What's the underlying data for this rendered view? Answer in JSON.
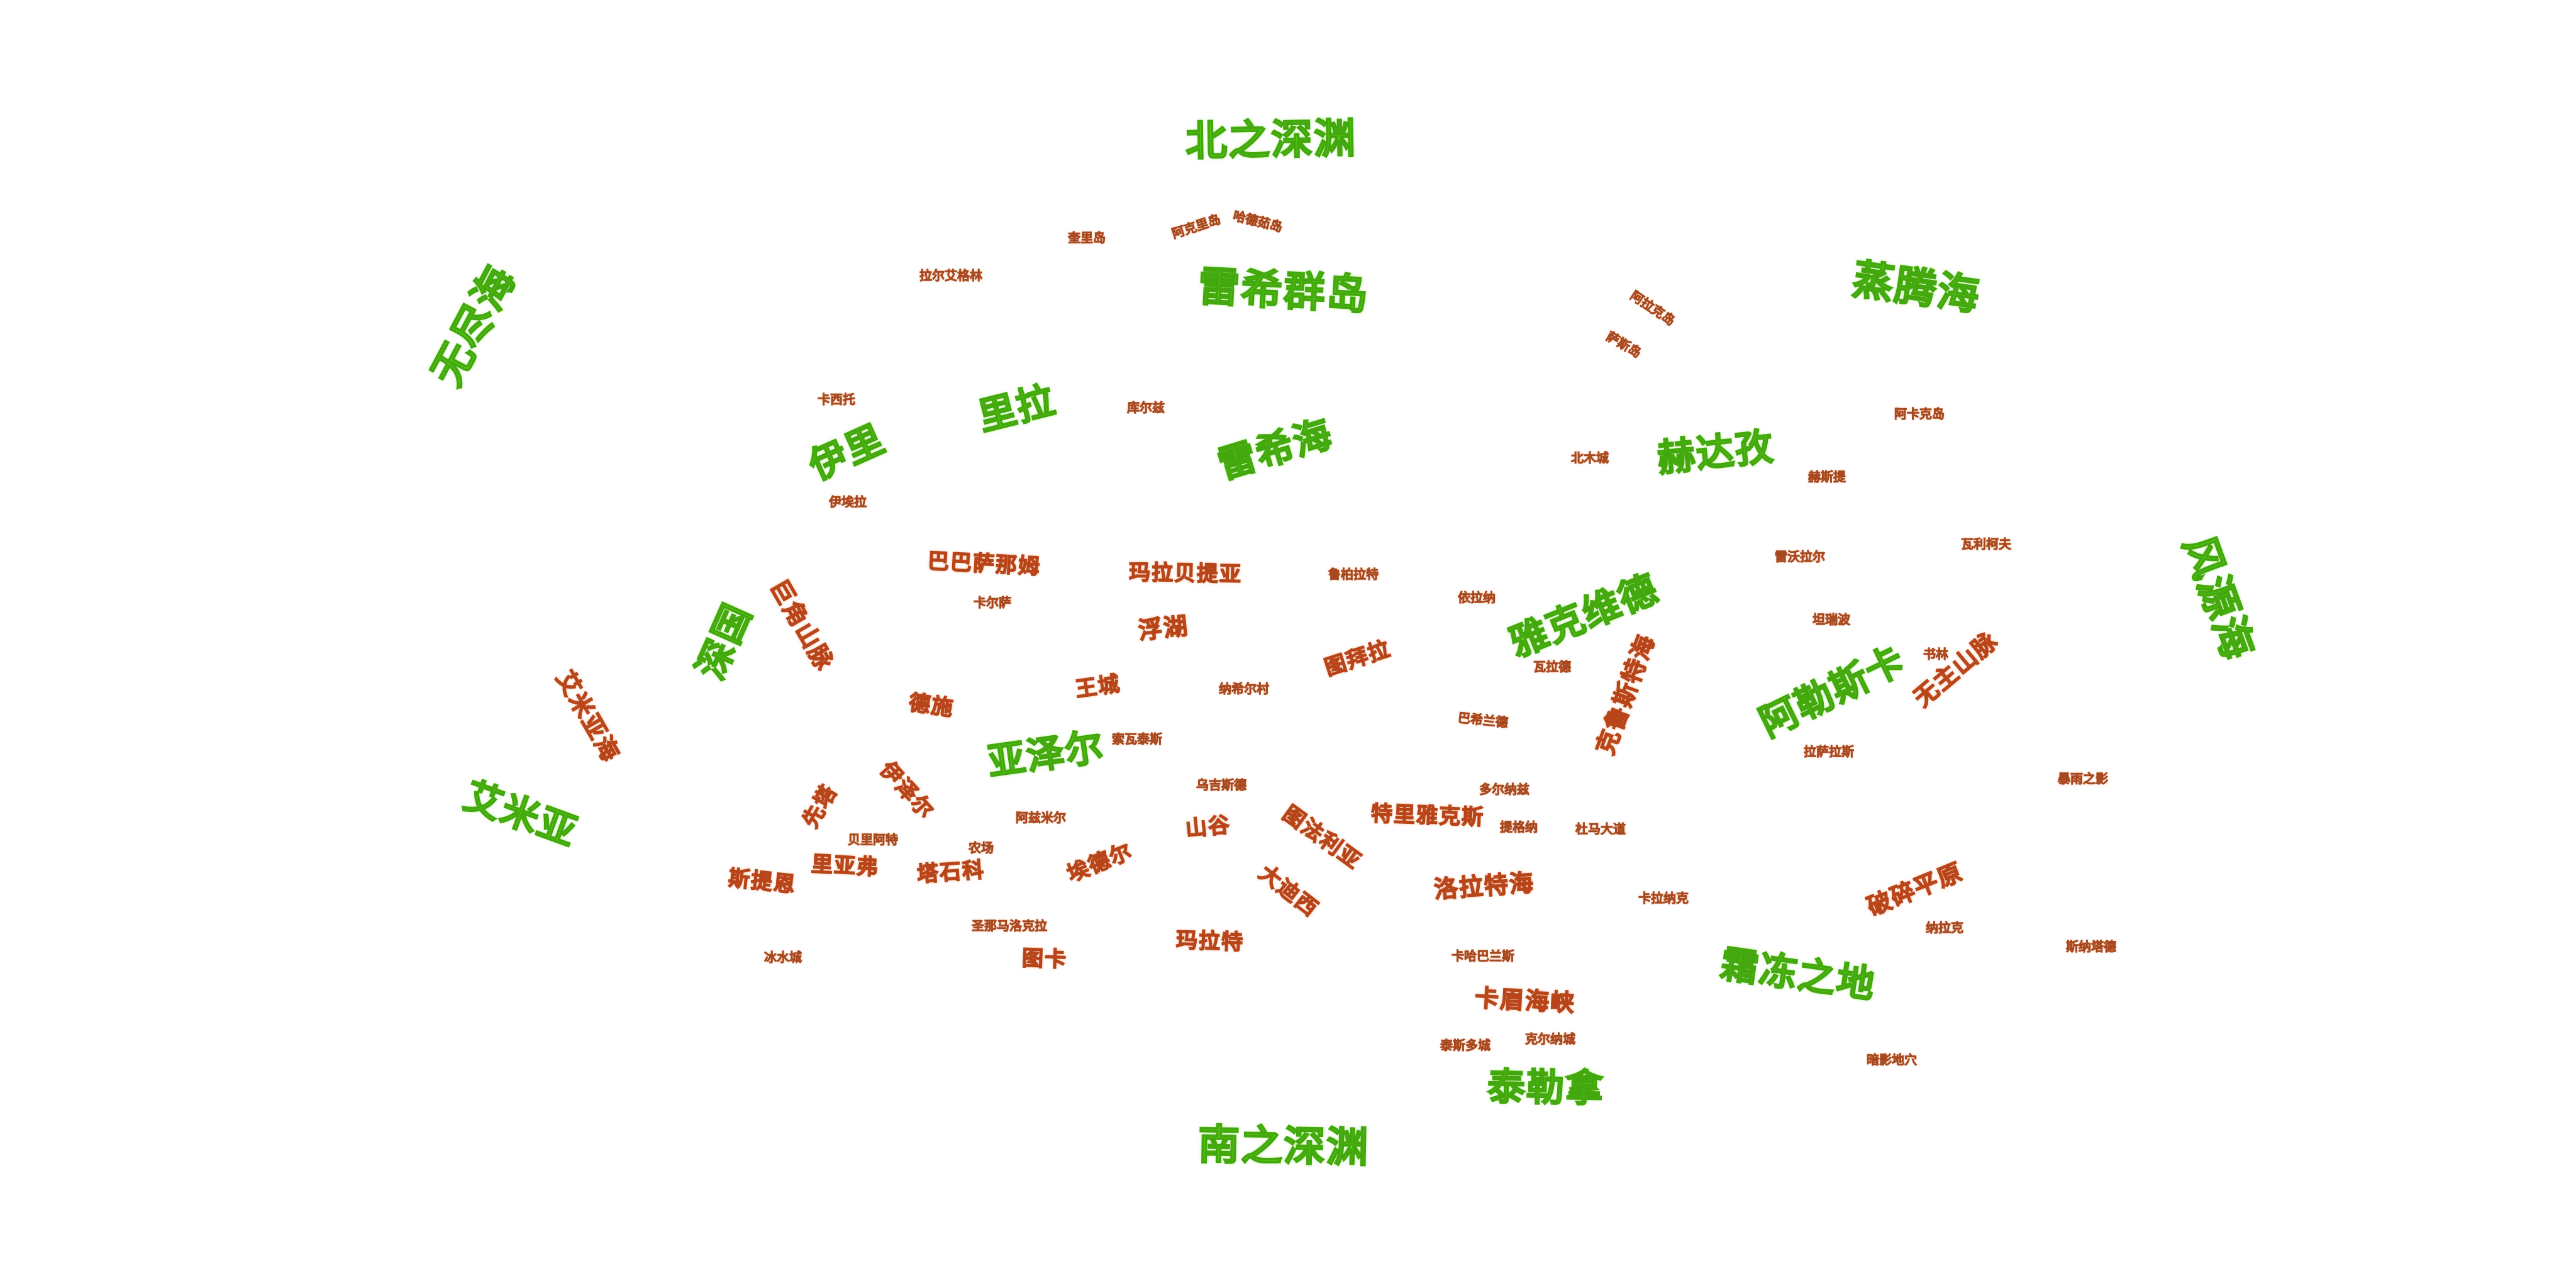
{
  "map": {
    "labels": {
      "north_abyss": "北之深渊",
      "south_abyss": "南之深渊",
      "rex_islands": "雷希群岛",
      "rex_sea": "雷希海",
      "vast_sea": "无尽海",
      "steam_sea": "蒸腾海",
      "wind_source_sea": "风源海",
      "ili": "伊里",
      "lila": "里拉",
      "hedaz": "赫达孜",
      "yakovid": "雅克维德",
      "alaska": "阿勒斯卡",
      "deep_kingdom": "深国",
      "azel": "亚泽尔",
      "emia": "艾米亚",
      "frostland": "霜冻之地",
      "taylorna": "泰勒拿",
      "giant_cape": "巨角山脉",
      "emiyasi_sea": "艾米亚海",
      "babazanom": "巴巴萨那姆",
      "marabetia": "玛拉贝提亚",
      "lake": "浮湖",
      "tibilla": "图拜拉",
      "wangcheng": "王城",
      "deshi": "德施",
      "kokmiddle": "克鲁斯特海",
      "no_main_mountain": "无主山脉",
      "shitan": "先塔",
      "yisel": "伊泽尔",
      "lilafu": "里亚弗",
      "sitien": "斯提恩",
      "tashike": "塔石科",
      "aidewel": "埃德尔",
      "shangu": "山谷",
      "tufaliya": "图法利亚",
      "tilijakes": "特里雅克斯",
      "dadise": "大迪西",
      "lolate_sea": "洛拉特海",
      "broken_plain": "破碎平原",
      "mara": "玛拉特",
      "tuka": "图卡",
      "kameixia": "卡眉海峡",
      "t_tuoer_aixin": "拉尔艾格林",
      "t_qiqidao": "奎里岛",
      "t_akeliedao": "阿克里岛",
      "t_shouyudao": "哈德茹岛",
      "t_kaxituo": "卡西托",
      "t_kuerlie": "库尔兹",
      "t_yiqiuqiu": "伊埃拉",
      "t_aliqiu": "阿拉克岛",
      "t_shaishidao": "萨斯岛",
      "t_akakedao": "阿卡克岛",
      "t_beimucheng": "北木城",
      "t_xusiti": "赫斯提",
      "t_guwolaer": "雷沃拉尔",
      "t_walikefu": "瓦利柯夫",
      "t_tanabo": "坦瑞波",
      "t_shushu": "书林",
      "t_kalekayi": "卡尔萨",
      "t_luobaiyi": "鲁柏拉特",
      "t_yilana": "依拉纳",
      "t_walade": "瓦拉德",
      "t_nahuan": "纳希尔村",
      "t_bahuan": "巴希兰德",
      "t_kuoneisi": "索瓦泰斯",
      "t_dsa": "拉萨拉斯",
      "t_shadow": "暴雨之影",
      "t_wuyudiqu": "乌吉斯德",
      "t_aerwanlinaxi": "多尔纳兹",
      "t_shanshina": "提格纳",
      "t_tuoma": "杜马大道",
      "t_alaziel": "阿兹米尔",
      "t_beiali": "贝里阿特",
      "t_nongchang": "农场",
      "t_kalanan": "卡拉纳克",
      "t_najiao": "纳拉克",
      "t_xinnaluobi": "斯纳塔德",
      "t_shengmo": "圣那马洛克拉",
      "t_bingshuicheng": "冰水城",
      "t_kaxiulanisi": "卡哈巴兰斯",
      "t_taisiduocheng": "泰斯多城",
      "t_kaiercheng": "克尔纳城",
      "t_shadowcave": "暗影地穴"
    }
  }
}
